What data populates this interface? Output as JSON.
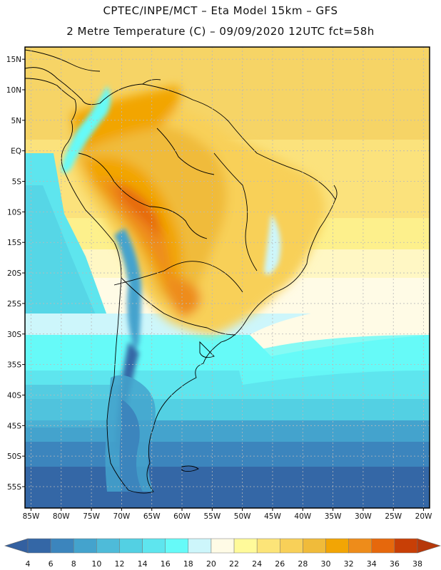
{
  "header": {
    "title_line1": "CPTEC/INPE/MCT –  Eta Model 15km – GFS",
    "title_line2": "2 Metre Temperature (C) – 09/09/2020 12UTC fct=58h"
  },
  "map": {
    "lon_range": [
      -86,
      -19
    ],
    "lat_range": [
      -58.5,
      17
    ],
    "lat_ticks": [
      {
        "value": 15,
        "label": "15N"
      },
      {
        "value": 10,
        "label": "10N"
      },
      {
        "value": 5,
        "label": "5N"
      },
      {
        "value": 0,
        "label": "EQ"
      },
      {
        "value": -5,
        "label": "5S"
      },
      {
        "value": -10,
        "label": "10S"
      },
      {
        "value": -15,
        "label": "15S"
      },
      {
        "value": -20,
        "label": "20S"
      },
      {
        "value": -25,
        "label": "25S"
      },
      {
        "value": -30,
        "label": "30S"
      },
      {
        "value": -35,
        "label": "35S"
      },
      {
        "value": -40,
        "label": "40S"
      },
      {
        "value": -45,
        "label": "45S"
      },
      {
        "value": -50,
        "label": "50S"
      },
      {
        "value": -55,
        "label": "55S"
      }
    ],
    "lon_ticks": [
      {
        "value": -85,
        "label": "85W"
      },
      {
        "value": -80,
        "label": "80W"
      },
      {
        "value": -75,
        "label": "75W"
      },
      {
        "value": -70,
        "label": "70W"
      },
      {
        "value": -65,
        "label": "65W"
      },
      {
        "value": -60,
        "label": "60W"
      },
      {
        "value": -55,
        "label": "55W"
      },
      {
        "value": -50,
        "label": "50W"
      },
      {
        "value": -45,
        "label": "45W"
      },
      {
        "value": -40,
        "label": "40W"
      },
      {
        "value": -35,
        "label": "35W"
      },
      {
        "value": -30,
        "label": "30W"
      },
      {
        "value": -25,
        "label": "25W"
      },
      {
        "value": -20,
        "label": "20W"
      }
    ]
  },
  "colorbar": {
    "labels": [
      "4",
      "6",
      "8",
      "10",
      "12",
      "14",
      "16",
      "18",
      "20",
      "22",
      "24",
      "26",
      "28",
      "30",
      "32",
      "34",
      "36",
      "38"
    ],
    "colors": [
      "#3467a6",
      "#3c85bd",
      "#44a3cd",
      "#4ebbd9",
      "#53d0e3",
      "#5ee5ee",
      "#66faf8",
      "#cdf6fb",
      "#fffbe6",
      "#fffa9a",
      "#fce478",
      "#f8d058",
      "#f0bb3a",
      "#f2a504",
      "#ee8c1a",
      "#e6680c",
      "#c83f06"
    ],
    "left_tip_color": "#3360a0",
    "right_tip_color": "#b6380a"
  }
}
